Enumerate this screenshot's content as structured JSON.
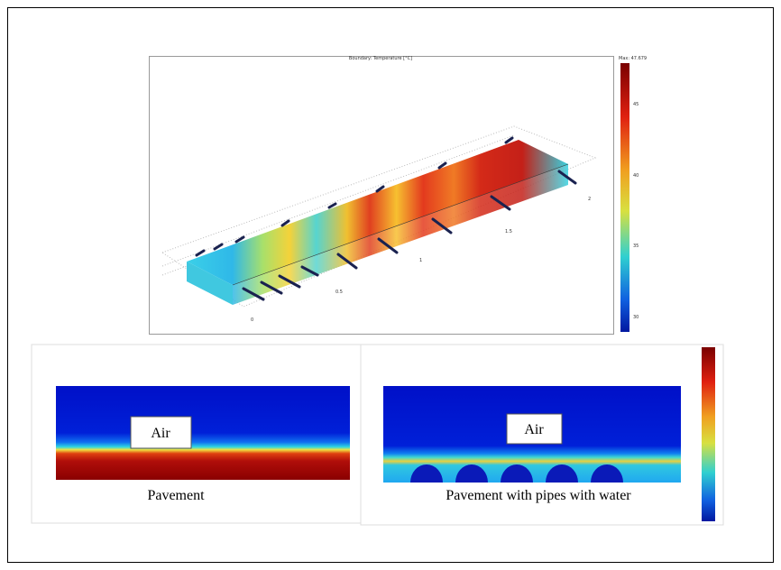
{
  "top_plot": {
    "title": "Boundary: Temperature [°C]",
    "max_label": "Max: 47.679",
    "colorbar_ticks": [
      "45",
      "40",
      "35",
      "30"
    ],
    "axis_labels": [
      "0",
      "0.5",
      "1",
      "1.5",
      "2"
    ]
  },
  "bottom_left": {
    "air_label": "Air",
    "caption": "Pavement"
  },
  "bottom_right": {
    "air_label": "Air",
    "caption": "Pavement with pipes with water"
  }
}
